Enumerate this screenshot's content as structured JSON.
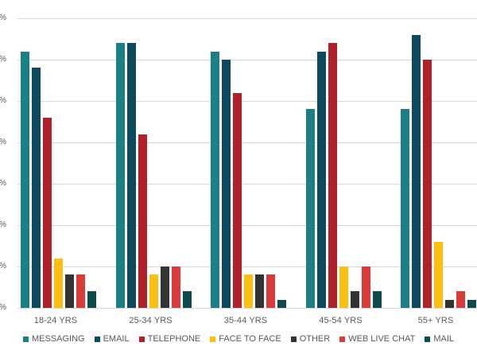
{
  "chart_data": {
    "type": "bar",
    "title": "",
    "xlabel": "",
    "ylabel": "",
    "ylim": [
      0,
      35
    ],
    "y_tick_step": 5,
    "y_tick_labels": [
      "%",
      "%",
      "%",
      "%",
      "%",
      "%",
      "%",
      "%"
    ],
    "grid": true,
    "legend_position": "bottom",
    "categories": [
      "18-24 YRS",
      "25-34 YRS",
      "35-44 YRS",
      "45-54 YRS",
      "55+ YRS"
    ],
    "series": [
      {
        "name": "MESSAGING",
        "color": "#1b7f86",
        "values": [
          31,
          32,
          31,
          24,
          24
        ]
      },
      {
        "name": "EMAIL",
        "color": "#0e4a5e",
        "values": [
          29,
          32,
          30,
          31,
          33
        ]
      },
      {
        "name": "TELEPHONE",
        "color": "#b0222b",
        "values": [
          23,
          21,
          26,
          32,
          30
        ]
      },
      {
        "name": "FACE TO FACE",
        "color": "#fdc010",
        "values": [
          6,
          4,
          4,
          5,
          8
        ]
      },
      {
        "name": "OTHER",
        "color": "#333333",
        "values": [
          4,
          5,
          4,
          2,
          1
        ]
      },
      {
        "name": "WEB LIVE CHAT",
        "color": "#d93a3a",
        "values": [
          4,
          5,
          4,
          5,
          2
        ]
      },
      {
        "name": "MAIL",
        "color": "#0f4a4f",
        "values": [
          2,
          2,
          1,
          2,
          1
        ]
      }
    ]
  }
}
